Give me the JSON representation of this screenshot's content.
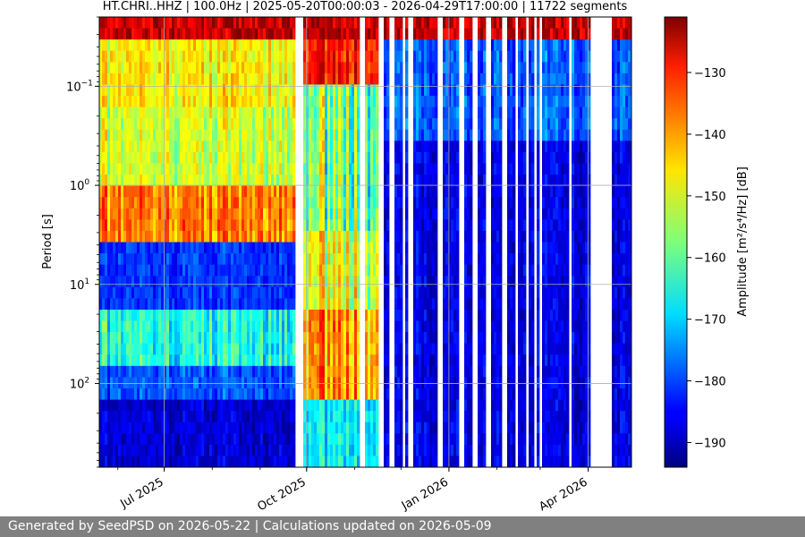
{
  "chart_data": {
    "type": "heatmap",
    "title": "HT.CHRI..HHZ | 100.0Hz | 2025-05-20T00:00:03 - 2026-04-29T17:00:00 | 11722 segments",
    "xlabel": "",
    "ylabel": "Period [s]",
    "x_range": [
      "2025-05-20",
      "2026-04-29"
    ],
    "x_ticks": [
      {
        "date": "2025-07-01",
        "label": "Jul 2025"
      },
      {
        "date": "2025-10-01",
        "label": "Oct 2025"
      },
      {
        "date": "2026-01-01",
        "label": "Jan 2026"
      },
      {
        "date": "2026-04-01",
        "label": "Apr 2026"
      }
    ],
    "y_scale": "log",
    "y_inverted": true,
    "y_range": [
      0.02,
      700
    ],
    "y_ticks": [
      {
        "value": 0.1,
        "base": "10",
        "exp": "−1"
      },
      {
        "value": 1,
        "base": "10",
        "exp": "0"
      },
      {
        "value": 10,
        "base": "10",
        "exp": "1"
      },
      {
        "value": 100,
        "base": "10",
        "exp": "2"
      }
    ],
    "grid": true,
    "colormap": "jet",
    "colorbar": {
      "label": "Amplitude [m²/s⁴/Hz] [dB]",
      "range": [
        -194,
        -121
      ],
      "ticks": [
        -130,
        -140,
        -150,
        -160,
        -170,
        -180,
        -190
      ]
    },
    "data_gaps": [
      [
        "2025-09-23",
        "2025-09-29"
      ],
      [
        "2025-11-04",
        "2025-11-07"
      ],
      [
        "2025-11-16",
        "2025-11-19"
      ],
      [
        "2025-11-24",
        "2025-11-27"
      ],
      [
        "2025-12-06",
        "2025-12-09"
      ],
      [
        "2025-12-24",
        "2025-12-27"
      ],
      [
        "2026-01-07",
        "2026-01-10"
      ],
      [
        "2026-01-16",
        "2026-01-19"
      ],
      [
        "2026-01-25",
        "2026-01-28"
      ],
      [
        "2026-02-04",
        "2026-02-07"
      ],
      [
        "2026-02-13",
        "2026-02-15"
      ],
      [
        "2026-02-19",
        "2026-02-21"
      ],
      [
        "2026-02-24",
        "2026-02-26"
      ],
      [
        "2026-02-28",
        "2026-03-02"
      ],
      [
        "2026-04-02",
        "2026-04-16"
      ]
    ],
    "regimes": [
      {
        "start": "2025-05-20",
        "end": "2025-09-23",
        "description": "strong microseism band"
      },
      {
        "start": "2025-09-29",
        "end": "2025-11-16",
        "description": "strong long-period energy"
      },
      {
        "start": "2025-11-16",
        "end": "2026-04-29",
        "description": "mostly low amplitude"
      }
    ]
  },
  "footer": {
    "text": "Generated by SeedPSD on 2026-05-22 | Calculations updated on 2026-05-09"
  }
}
